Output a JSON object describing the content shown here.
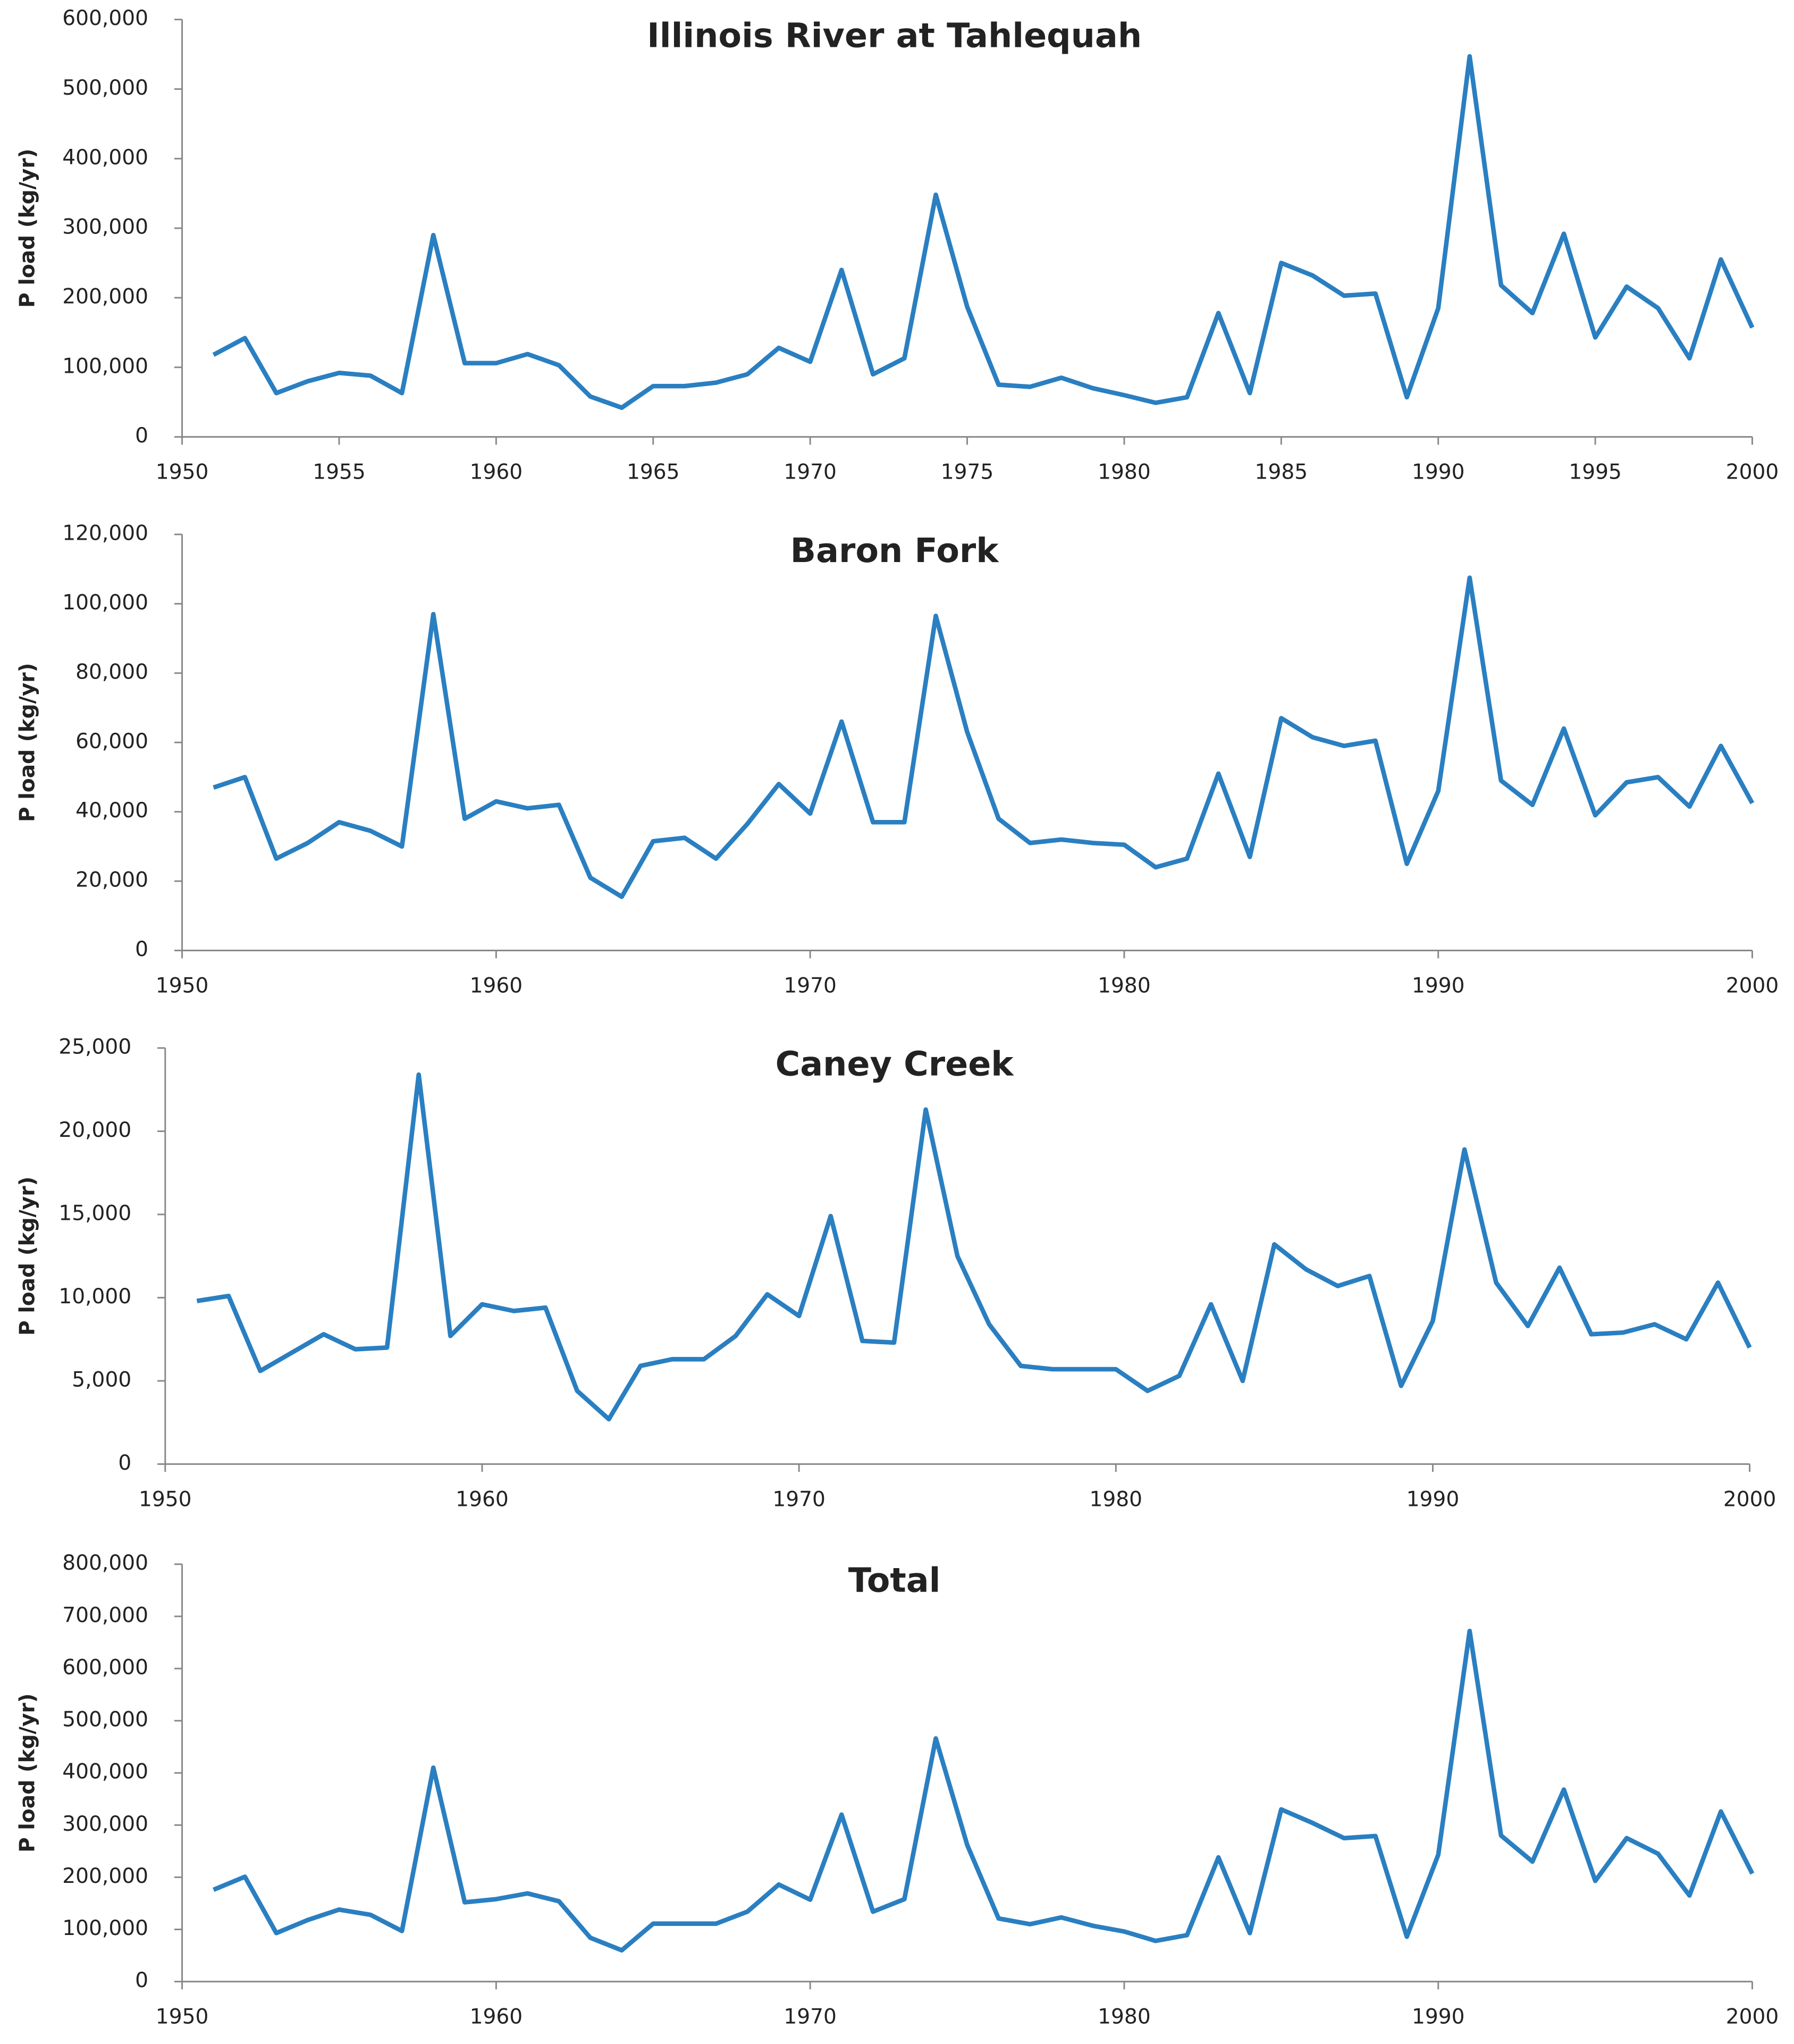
{
  "chart_data": [
    {
      "type": "line",
      "title": "Illinois River at Tahlequah",
      "y_label": "P load (kg/yr)",
      "color": "#2a7fc1",
      "x": [
        1951,
        1952,
        1953,
        1954,
        1955,
        1956,
        1957,
        1958,
        1959,
        1960,
        1961,
        1962,
        1963,
        1964,
        1965,
        1966,
        1967,
        1968,
        1969,
        1970,
        1971,
        1972,
        1973,
        1974,
        1975,
        1976,
        1977,
        1978,
        1979,
        1980,
        1981,
        1982,
        1983,
        1984,
        1985,
        1986,
        1987,
        1988,
        1989,
        1990,
        1991,
        1992,
        1993,
        1994,
        1995,
        1996,
        1997,
        1998,
        1999,
        2000
      ],
      "values": [
        118000,
        142000,
        63000,
        80000,
        92000,
        88000,
        63000,
        290000,
        106000,
        106000,
        119000,
        103000,
        58000,
        42000,
        73000,
        73000,
        78000,
        90000,
        128000,
        108000,
        240000,
        90000,
        113000,
        348000,
        187000,
        75000,
        72000,
        85000,
        70000,
        60000,
        49000,
        57000,
        178000,
        63000,
        250000,
        232000,
        203000,
        206000,
        57000,
        185000,
        547000,
        218000,
        178000,
        292000,
        143000,
        216000,
        185000,
        113000,
        255000,
        157000
      ],
      "xlim": [
        1950,
        2000
      ],
      "xticks": [
        1950,
        1955,
        1960,
        1965,
        1970,
        1975,
        1980,
        1985,
        1990,
        1995,
        2000
      ],
      "ylim": [
        0,
        600000
      ],
      "yticks": [
        0,
        {
          "value": 100000,
          "label": "100,000"
        },
        {
          "value": 200000,
          "label": "200,000"
        },
        {
          "value": 300000,
          "label": "300,000"
        },
        {
          "value": 400000,
          "label": "400,000"
        },
        {
          "value": 500000,
          "label": "500,000"
        },
        {
          "value": 600000,
          "label": "600,000"
        }
      ]
    },
    {
      "type": "line",
      "title": "Baron Fork",
      "y_label": "P load (kg/yr)",
      "color": "#2a7fc1",
      "x": [
        1951,
        1952,
        1953,
        1954,
        1955,
        1956,
        1957,
        1958,
        1959,
        1960,
        1961,
        1962,
        1963,
        1964,
        1965,
        1966,
        1967,
        1968,
        1969,
        1970,
        1971,
        1972,
        1973,
        1974,
        1975,
        1976,
        1977,
        1978,
        1979,
        1980,
        1981,
        1982,
        1983,
        1984,
        1985,
        1986,
        1987,
        1988,
        1989,
        1990,
        1991,
        1992,
        1993,
        1994,
        1995,
        1996,
        1997,
        1998,
        1999,
        2000
      ],
      "values": [
        47000,
        50000,
        26500,
        31000,
        37000,
        34500,
        30000,
        97000,
        38000,
        43000,
        41000,
        42000,
        21000,
        15500,
        31500,
        32500,
        26500,
        36500,
        48000,
        39500,
        66000,
        37000,
        37000,
        96500,
        63000,
        38000,
        31000,
        32000,
        31000,
        30500,
        24000,
        26500,
        51000,
        27000,
        67000,
        61500,
        59000,
        60500,
        25000,
        46000,
        107500,
        49000,
        42000,
        64000,
        39000,
        48500,
        50000,
        41500,
        59000,
        42500
      ],
      "xlim": [
        1950,
        2000
      ],
      "xticks": [
        1950,
        1960,
        1970,
        1980,
        1990,
        2000
      ],
      "ylim": [
        0,
        120000
      ],
      "yticks": [
        0,
        {
          "value": 20000,
          "label": "20,000"
        },
        {
          "value": 40000,
          "label": "40,000"
        },
        {
          "value": 60000,
          "label": "60,000"
        },
        {
          "value": 80000,
          "label": "80,000"
        },
        {
          "value": 100000,
          "label": "100,000"
        },
        {
          "value": 120000,
          "label": "120,000"
        }
      ]
    },
    {
      "type": "line",
      "title": "Caney Creek",
      "y_label": "P load (kg/yr)",
      "color": "#2a7fc1",
      "x": [
        1951,
        1952,
        1953,
        1954,
        1955,
        1956,
        1957,
        1958,
        1959,
        1960,
        1961,
        1962,
        1963,
        1964,
        1965,
        1966,
        1967,
        1968,
        1969,
        1970,
        1971,
        1972,
        1973,
        1974,
        1975,
        1976,
        1977,
        1978,
        1979,
        1980,
        1981,
        1982,
        1983,
        1984,
        1985,
        1986,
        1987,
        1988,
        1989,
        1990,
        1991,
        1992,
        1993,
        1994,
        1995,
        1996,
        1997,
        1998,
        1999,
        2000
      ],
      "values": [
        9800,
        10100,
        5600,
        6700,
        7800,
        6900,
        7000,
        23400,
        7700,
        9600,
        9200,
        9400,
        4400,
        2700,
        5900,
        6300,
        6300,
        7700,
        10200,
        8900,
        14900,
        7400,
        7300,
        21300,
        12500,
        8400,
        5900,
        5700,
        5700,
        5700,
        4400,
        5300,
        9600,
        5000,
        13200,
        11700,
        10700,
        11300,
        4700,
        8600,
        18900,
        10900,
        8300,
        11800,
        7800,
        7900,
        8400,
        7500,
        10900,
        7000
      ],
      "xlim": [
        1950,
        2000
      ],
      "xticks": [
        1950,
        1960,
        1970,
        1980,
        1990,
        2000
      ],
      "ylim": [
        0,
        25000
      ],
      "yticks": [
        0,
        {
          "value": 5000,
          "label": "5,000"
        },
        {
          "value": 10000,
          "label": "10,000"
        },
        {
          "value": 15000,
          "label": "15,000"
        },
        {
          "value": 20000,
          "label": "20,000"
        },
        {
          "value": 25000,
          "label": "25,000"
        }
      ]
    },
    {
      "type": "line",
      "title": "Total",
      "y_label": "P load (kg/yr)",
      "color": "#2a7fc1",
      "x": [
        1951,
        1952,
        1953,
        1954,
        1955,
        1956,
        1957,
        1958,
        1959,
        1960,
        1961,
        1962,
        1963,
        1964,
        1965,
        1966,
        1967,
        1968,
        1969,
        1970,
        1971,
        1972,
        1973,
        1974,
        1975,
        1976,
        1977,
        1978,
        1979,
        1980,
        1981,
        1982,
        1983,
        1984,
        1985,
        1986,
        1987,
        1988,
        1989,
        1990,
        1991,
        1992,
        1993,
        1994,
        1995,
        1996,
        1997,
        1998,
        1999,
        2000
      ],
      "values": [
        176000,
        201000,
        93000,
        118000,
        138000,
        128000,
        97000,
        410000,
        152000,
        158000,
        169000,
        154000,
        84000,
        60000,
        111000,
        111000,
        111000,
        134000,
        186000,
        157000,
        320000,
        134000,
        158000,
        466000,
        262000,
        121000,
        110000,
        123000,
        107000,
        96000,
        78000,
        89000,
        238000,
        93000,
        330000,
        304000,
        275000,
        279000,
        86000,
        243000,
        672000,
        280000,
        230000,
        368000,
        193000,
        275000,
        245000,
        165000,
        326000,
        207000
      ],
      "xlim": [
        1950,
        2000
      ],
      "xticks": [
        1950,
        1960,
        1970,
        1980,
        1990,
        2000
      ],
      "ylim": [
        0,
        800000
      ],
      "yticks": [
        0,
        {
          "value": 100000,
          "label": "100,000"
        },
        {
          "value": 200000,
          "label": "200,000"
        },
        {
          "value": 300000,
          "label": "300,000"
        },
        {
          "value": 400000,
          "label": "400,000"
        },
        {
          "value": 500000,
          "label": "500,000"
        },
        {
          "value": 600000,
          "label": "600,000"
        },
        {
          "value": 700000,
          "label": "700,000"
        },
        {
          "value": 800000,
          "label": "800,000"
        }
      ]
    }
  ]
}
